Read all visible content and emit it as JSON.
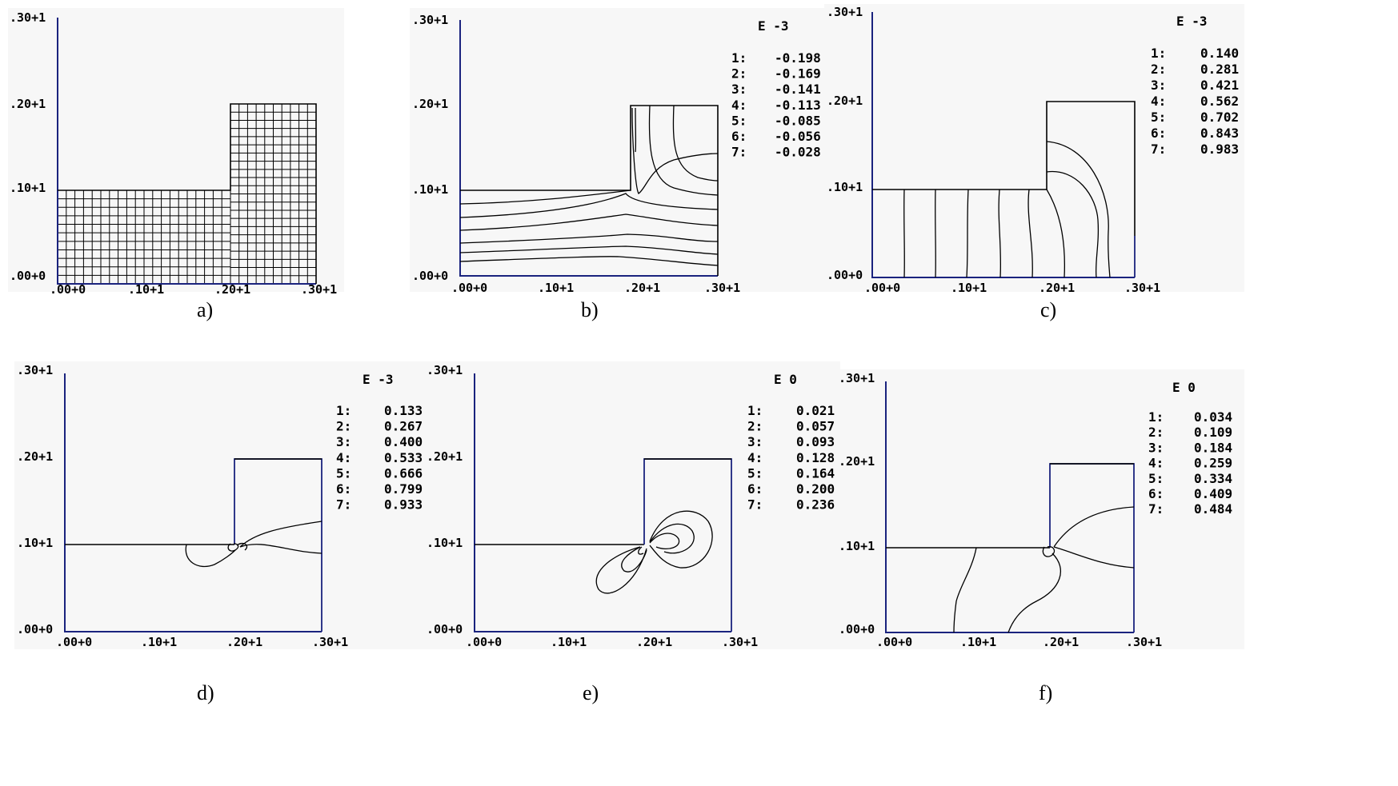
{
  "axis_ticks": {
    "x": [
      ".00+0",
      ".10+1",
      ".20+1",
      ".30+1"
    ],
    "y": [
      ".00+0",
      ".10+1",
      ".20+1",
      ".30+1"
    ]
  },
  "panels": [
    {
      "caption": "a)",
      "legend": null
    },
    {
      "caption": "b)",
      "legend": {
        "exponent": "E -3",
        "entries": [
          {
            "index": "1:",
            "value": "-0.198"
          },
          {
            "index": "2:",
            "value": "-0.169"
          },
          {
            "index": "3:",
            "value": "-0.141"
          },
          {
            "index": "4:",
            "value": "-0.113"
          },
          {
            "index": "5:",
            "value": "-0.085"
          },
          {
            "index": "6:",
            "value": "-0.056"
          },
          {
            "index": "7:",
            "value": "-0.028"
          }
        ]
      }
    },
    {
      "caption": "c)",
      "legend": {
        "exponent": "E -3",
        "entries": [
          {
            "index": "1:",
            "value": "0.140"
          },
          {
            "index": "2:",
            "value": "0.281"
          },
          {
            "index": "3:",
            "value": "0.421"
          },
          {
            "index": "4:",
            "value": "0.562"
          },
          {
            "index": "5:",
            "value": "0.702"
          },
          {
            "index": "6:",
            "value": "0.843"
          },
          {
            "index": "7:",
            "value": "0.983"
          }
        ]
      }
    },
    {
      "caption": "d)",
      "legend": {
        "exponent": "E -3",
        "entries": [
          {
            "index": "1:",
            "value": "0.133"
          },
          {
            "index": "2:",
            "value": "0.267"
          },
          {
            "index": "3:",
            "value": "0.400"
          },
          {
            "index": "4:",
            "value": "0.533"
          },
          {
            "index": "5:",
            "value": "0.666"
          },
          {
            "index": "6:",
            "value": "0.799"
          },
          {
            "index": "7:",
            "value": "0.933"
          }
        ]
      }
    },
    {
      "caption": "e)",
      "legend": {
        "exponent": "E  0",
        "entries": [
          {
            "index": "1:",
            "value": "0.021"
          },
          {
            "index": "2:",
            "value": "0.057"
          },
          {
            "index": "3:",
            "value": "0.093"
          },
          {
            "index": "4:",
            "value": "0.128"
          },
          {
            "index": "5:",
            "value": "0.164"
          },
          {
            "index": "6:",
            "value": "0.200"
          },
          {
            "index": "7:",
            "value": "0.236"
          }
        ]
      }
    },
    {
      "caption": "f)",
      "legend": {
        "exponent": "E  0",
        "entries": [
          {
            "index": "1:",
            "value": "0.034"
          },
          {
            "index": "2:",
            "value": "0.109"
          },
          {
            "index": "3:",
            "value": "0.184"
          },
          {
            "index": "4:",
            "value": "0.259"
          },
          {
            "index": "5:",
            "value": "0.334"
          },
          {
            "index": "6:",
            "value": "0.409"
          },
          {
            "index": "7:",
            "value": "0.484"
          }
        ]
      }
    }
  ]
}
